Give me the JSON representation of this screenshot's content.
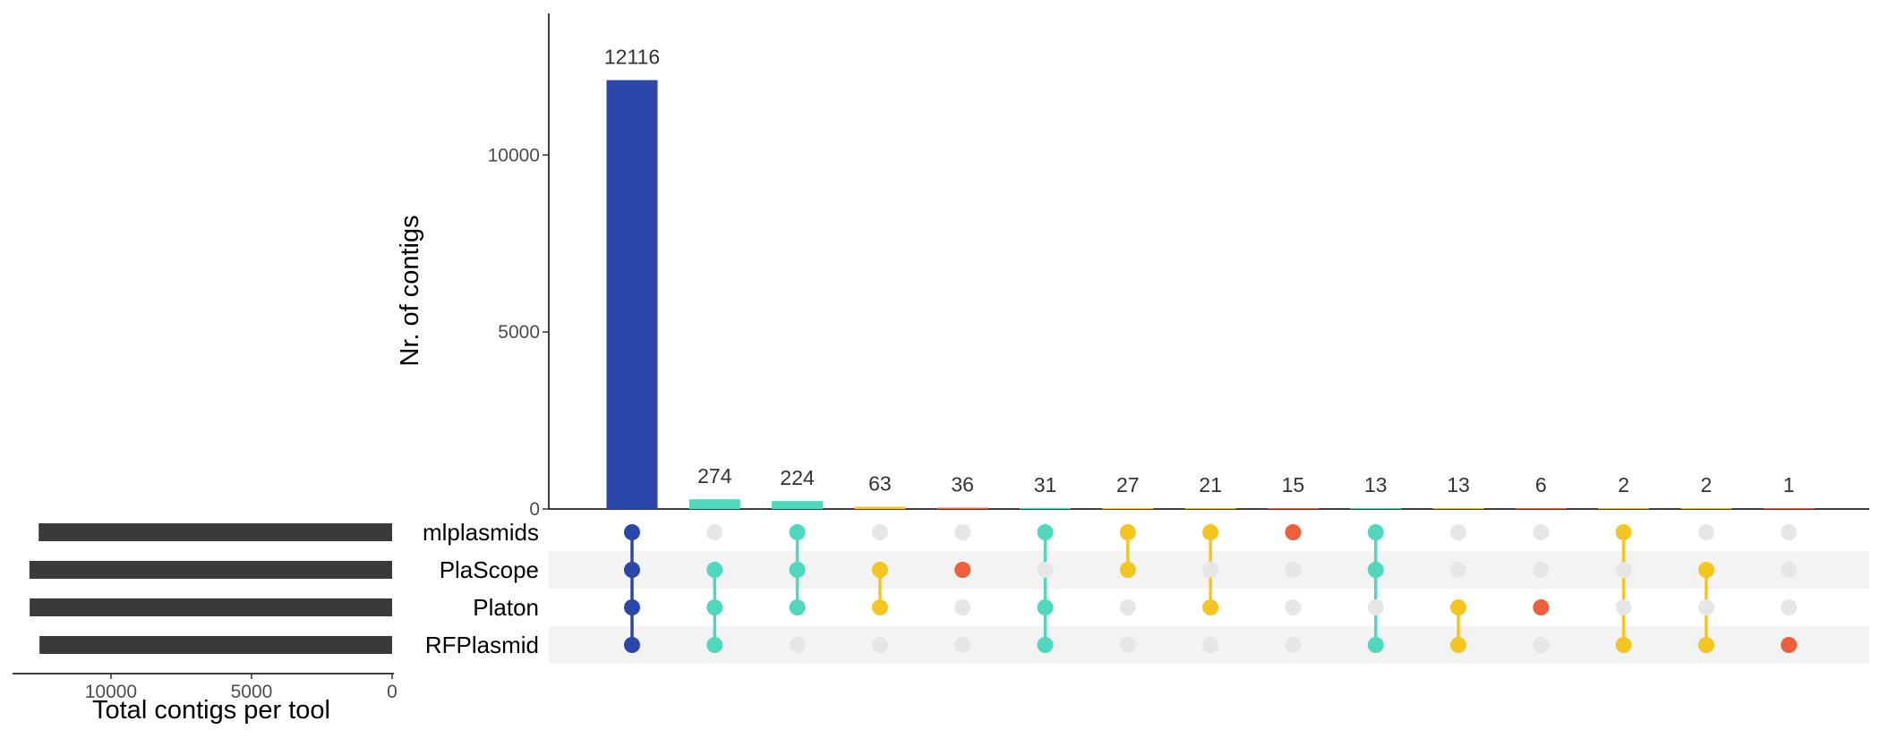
{
  "chart_data": {
    "type": "upset",
    "ylabel": "Nr. of contigs",
    "ylim": [
      0,
      14000
    ],
    "yticks": [
      0,
      5000,
      10000
    ],
    "sets": [
      "mlplasmids",
      "PlaScope",
      "Platon",
      "RFPlasmid"
    ],
    "set_sizes_xlabel": "Total contigs per tool",
    "set_sizes_xlim": [
      0,
      13500
    ],
    "set_sizes_xticks": [
      10000,
      5000,
      0
    ],
    "set_sizes": [
      {
        "set": "mlplasmids",
        "value": 12570
      },
      {
        "set": "PlaScope",
        "value": 12900
      },
      {
        "set": "Platon",
        "value": 12890
      },
      {
        "set": "RFPlasmid",
        "value": 12540
      }
    ],
    "intersections": [
      {
        "sets": [
          "mlplasmids",
          "PlaScope",
          "Platon",
          "RFPlasmid"
        ],
        "value": 12116,
        "color": "#2c47aa"
      },
      {
        "sets": [
          "PlaScope",
          "Platon",
          "RFPlasmid"
        ],
        "value": 274,
        "color": "#4fd8bb"
      },
      {
        "sets": [
          "mlplasmids",
          "PlaScope",
          "Platon"
        ],
        "value": 224,
        "color": "#4fd8bb"
      },
      {
        "sets": [
          "PlaScope",
          "Platon"
        ],
        "value": 63,
        "color": "#f5c520"
      },
      {
        "sets": [
          "PlaScope"
        ],
        "value": 36,
        "color": "#ef5f3c"
      },
      {
        "sets": [
          "mlplasmids",
          "Platon",
          "RFPlasmid"
        ],
        "value": 31,
        "color": "#4fd8bb"
      },
      {
        "sets": [
          "mlplasmids",
          "PlaScope"
        ],
        "value": 27,
        "color": "#f5c520"
      },
      {
        "sets": [
          "mlplasmids",
          "Platon"
        ],
        "value": 21,
        "color": "#f5c520"
      },
      {
        "sets": [
          "mlplasmids"
        ],
        "value": 15,
        "color": "#ef5f3c"
      },
      {
        "sets": [
          "mlplasmids",
          "PlaScope",
          "RFPlasmid"
        ],
        "value": 13,
        "color": "#4fd8bb"
      },
      {
        "sets": [
          "Platon",
          "RFPlasmid"
        ],
        "value": 13,
        "color": "#f5c520"
      },
      {
        "sets": [
          "Platon"
        ],
        "value": 6,
        "color": "#ef5f3c"
      },
      {
        "sets": [
          "mlplasmids",
          "RFPlasmid"
        ],
        "value": 2,
        "color": "#f5c520"
      },
      {
        "sets": [
          "PlaScope",
          "RFPlasmid"
        ],
        "value": 2,
        "color": "#f5c520"
      },
      {
        "sets": [
          "RFPlasmid"
        ],
        "value": 1,
        "color": "#ef5f3c"
      }
    ],
    "colors": {
      "set_size_bar": "#3a3a3a",
      "inactive_dot": "#e6e6e6",
      "row_stripe": "#f3f3f3"
    },
    "grid": false,
    "legend": "none"
  }
}
